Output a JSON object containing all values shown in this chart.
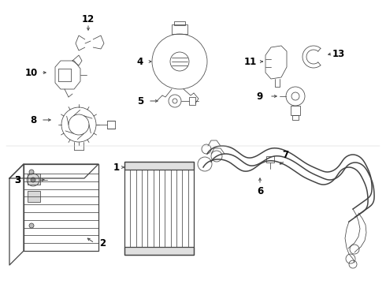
{
  "bg_color": "#ffffff",
  "line_color": "#444444",
  "text_color": "#000000",
  "fig_width": 4.9,
  "fig_height": 3.6,
  "dpi": 100,
  "lw_main": 0.9,
  "lw_thin": 0.55,
  "lw_hose": 1.1,
  "arrow_ms": 5,
  "label_fs": 8.5
}
